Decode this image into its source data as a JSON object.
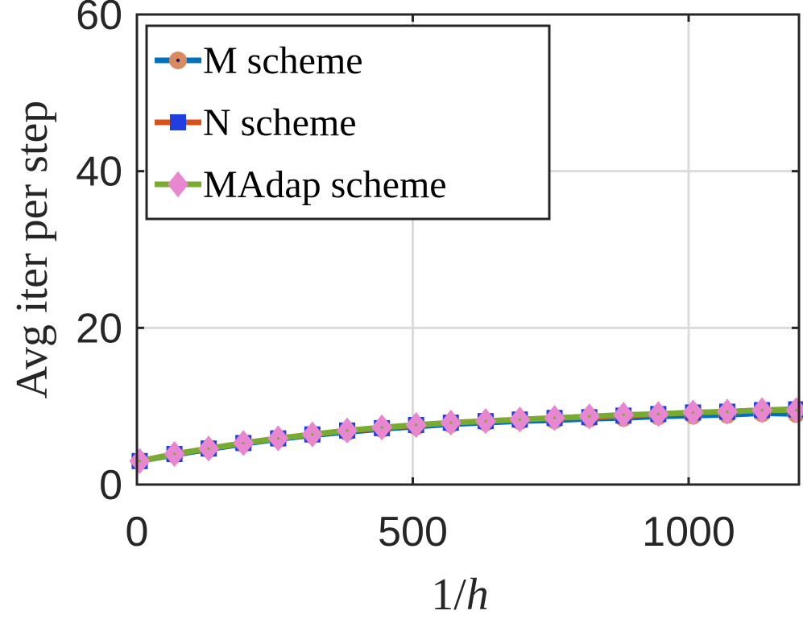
{
  "chart_data": {
    "type": "line",
    "xlabel_num": "1/",
    "xlabel_var": "h",
    "ylabel": "Avg iter per step",
    "xlim": [
      0,
      1200
    ],
    "ylim": [
      0,
      60
    ],
    "xticks": [
      0,
      500,
      1000
    ],
    "xtick_labels": [
      "0",
      "500",
      "1000"
    ],
    "yticks": [
      0,
      20,
      40,
      60
    ],
    "ytick_labels": [
      "0",
      "20",
      "40",
      "60"
    ],
    "grid": true,
    "legend_position": "top-left",
    "x": [
      5,
      68,
      130,
      193,
      256,
      318,
      381,
      444,
      506,
      569,
      632,
      694,
      757,
      820,
      882,
      945,
      1008,
      1070,
      1133,
      1195
    ],
    "series": [
      {
        "name": "M scheme",
        "color": "#0072BD",
        "marker": "circle",
        "marker_color": "#D98A60",
        "values": [
          3.0,
          3.8,
          4.5,
          5.2,
          5.8,
          6.3,
          6.7,
          7.1,
          7.4,
          7.7,
          7.9,
          8.1,
          8.2,
          8.4,
          8.5,
          8.7,
          8.8,
          8.9,
          9.1,
          9.0
        ]
      },
      {
        "name": "N scheme",
        "color": "#D95319",
        "marker": "square",
        "marker_color": "#1F3FE0",
        "values": [
          3.0,
          3.9,
          4.6,
          5.3,
          5.9,
          6.4,
          6.9,
          7.2,
          7.6,
          7.9,
          8.1,
          8.3,
          8.5,
          8.6,
          8.8,
          9.0,
          9.2,
          9.3,
          9.5,
          9.6
        ]
      },
      {
        "name": "MAdap scheme",
        "color": "#77AC30",
        "marker": "diamond",
        "marker_color": "#E887CF",
        "values": [
          3.0,
          3.9,
          4.6,
          5.3,
          5.9,
          6.4,
          6.9,
          7.3,
          7.6,
          7.9,
          8.1,
          8.3,
          8.5,
          8.7,
          8.9,
          9.0,
          9.2,
          9.3,
          9.5,
          9.5
        ]
      }
    ]
  }
}
